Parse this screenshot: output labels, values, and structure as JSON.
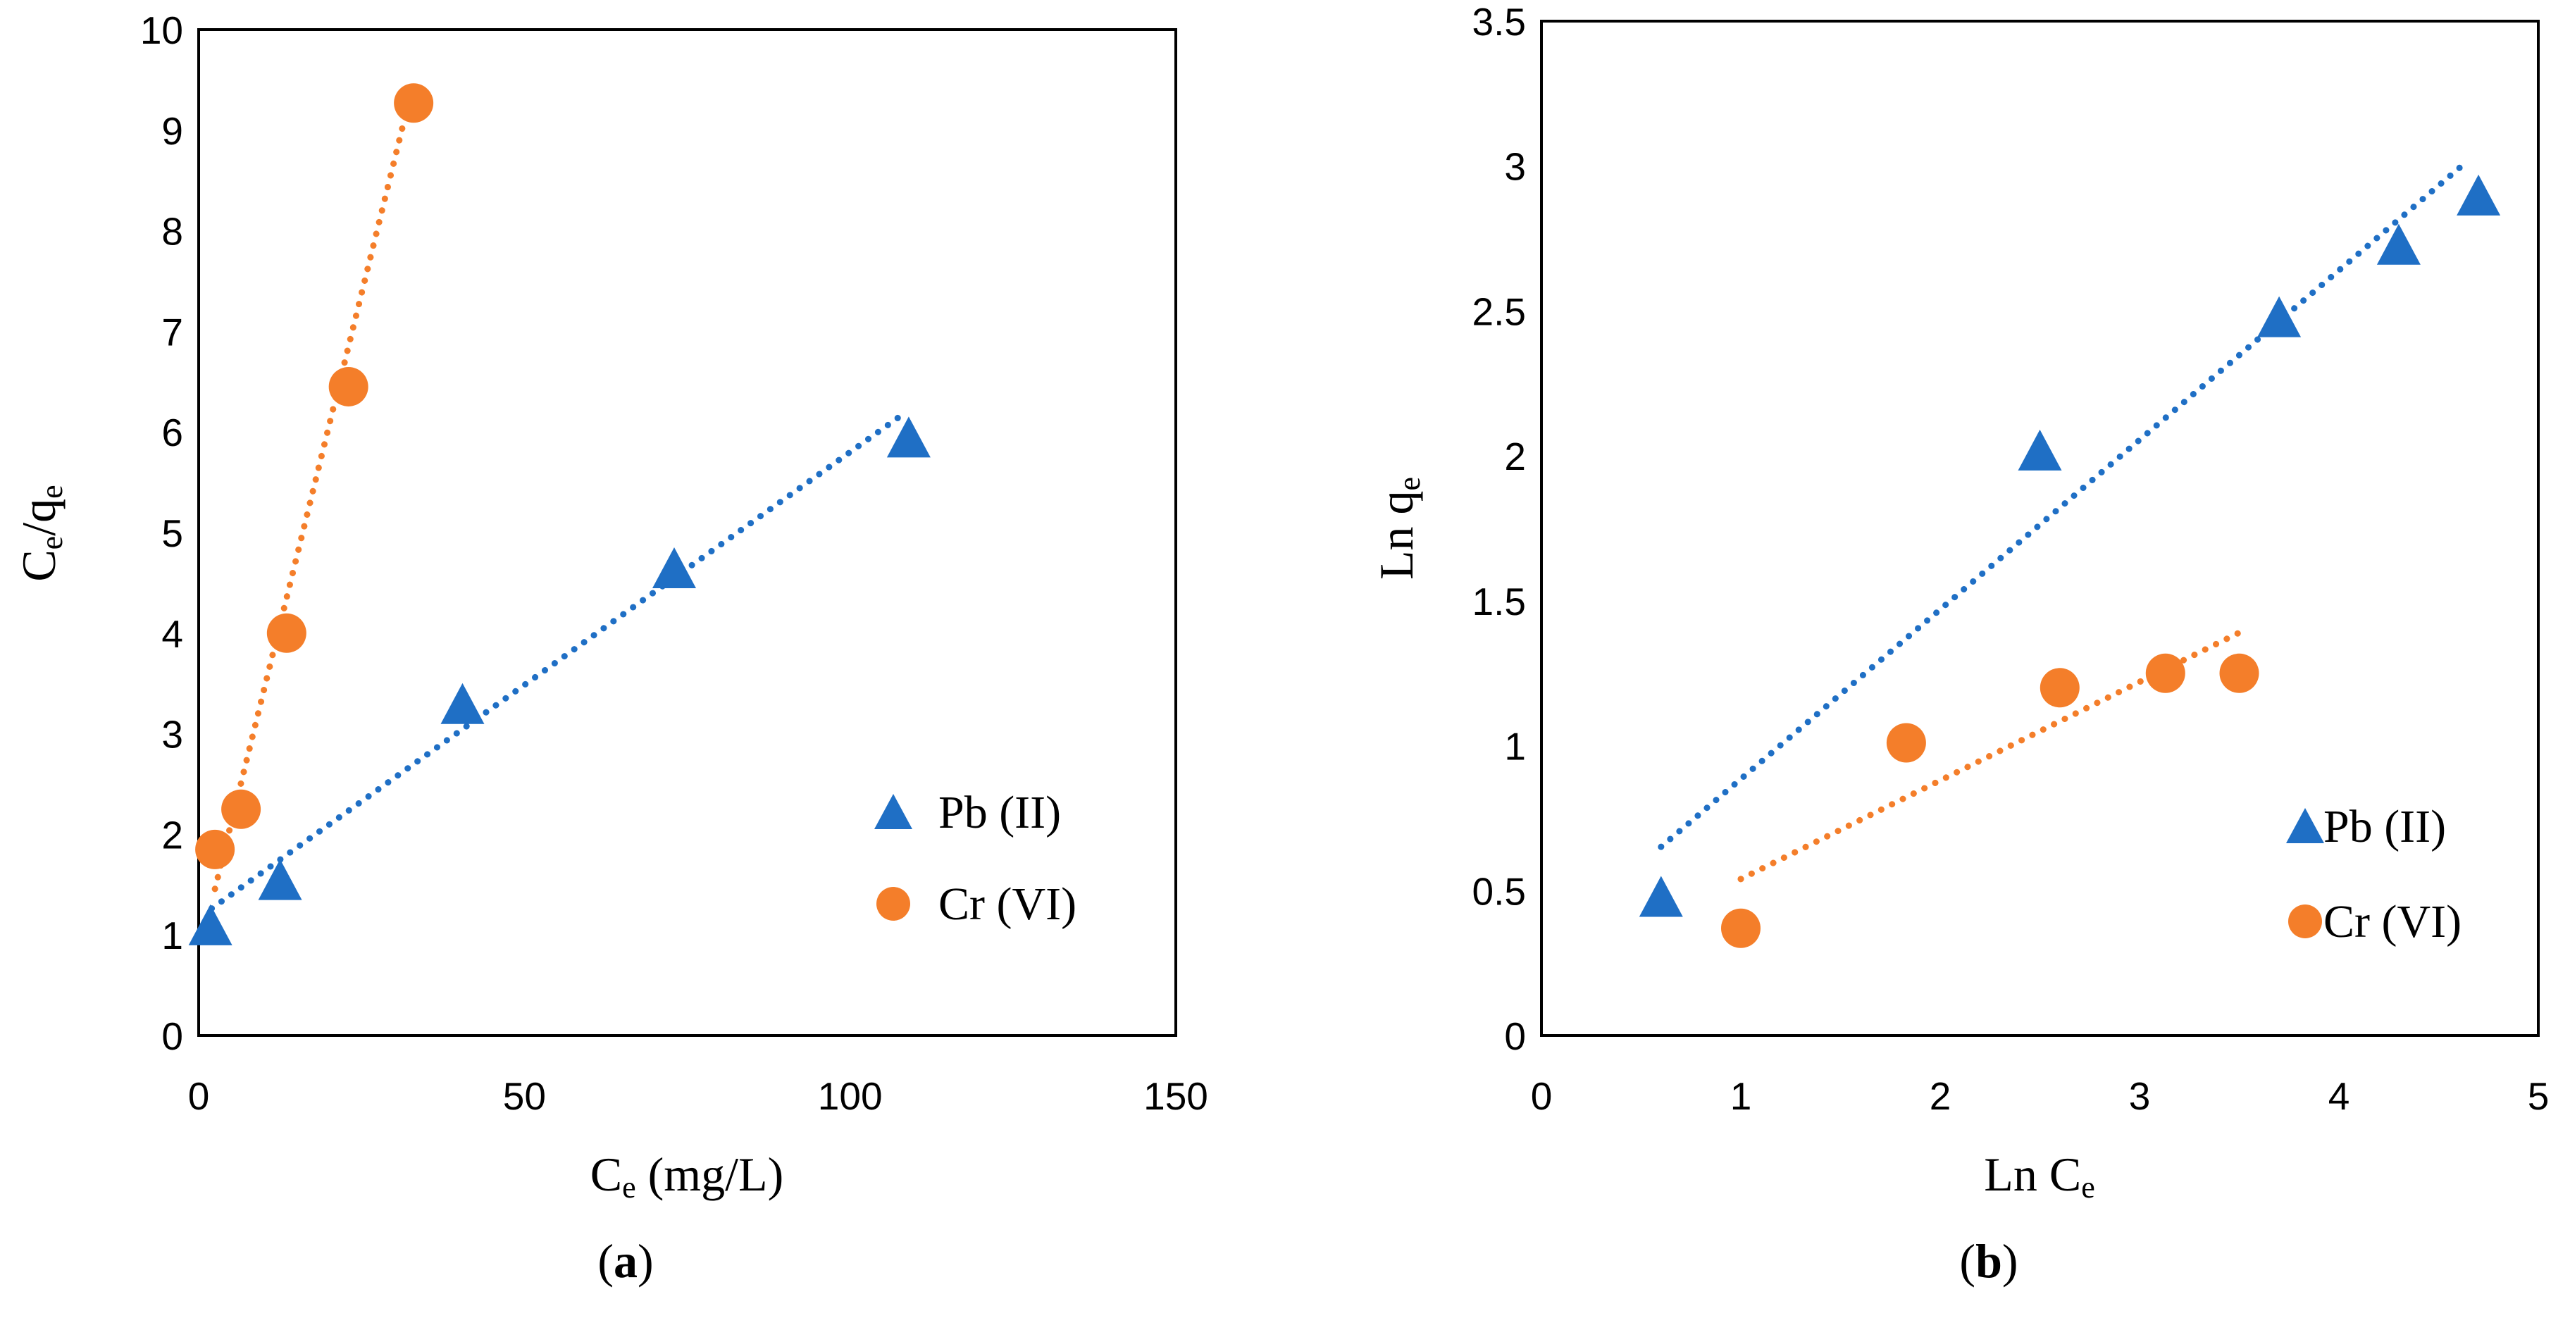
{
  "chart_data": [
    {
      "type": "scatter",
      "panel_label": "a",
      "xlabel": {
        "base": "C",
        "sub": "e",
        "suffix": " (mg/L)"
      },
      "ylabel": {
        "parts": [
          {
            "t": "C",
            "sub": false
          },
          {
            "t": "e",
            "sub": true
          },
          {
            "t": "/q",
            "sub": false
          },
          {
            "t": "e",
            "sub": true
          }
        ]
      },
      "xlim": [
        0,
        150
      ],
      "ylim": [
        0,
        10
      ],
      "xticks": [
        0,
        50,
        100,
        150
      ],
      "yticks": [
        0,
        1,
        2,
        3,
        4,
        5,
        6,
        7,
        8,
        9,
        10
      ],
      "legend_position": "lower-right",
      "series": [
        {
          "name": "Pb (II)",
          "marker": "triangle",
          "color": "#1F6FC5",
          "x": [
            1.8,
            12.5,
            40.5,
            73,
            109
          ],
          "y": [
            1.1,
            1.55,
            3.3,
            4.65,
            5.95
          ],
          "trendline": {
            "x0": 2,
            "x1": 108,
            "slope": 0.0463,
            "intercept": 1.17
          }
        },
        {
          "name": "Cr (VI)",
          "marker": "circle",
          "color": "#F47E2A",
          "x": [
            2.5,
            6.5,
            13.5,
            23,
            33
          ],
          "y": [
            1.85,
            2.25,
            4.0,
            6.45,
            9.27
          ],
          "trendline": {
            "x0": 2.5,
            "x1": 32.5,
            "slope": 0.263,
            "intercept": 0.8
          }
        }
      ]
    },
    {
      "type": "scatter",
      "panel_label": "b",
      "xlabel": {
        "base": "Ln C",
        "sub": "e",
        "suffix": ""
      },
      "ylabel": {
        "parts": [
          {
            "t": "Ln q",
            "sub": false
          },
          {
            "t": "e",
            "sub": true
          }
        ]
      },
      "xlim": [
        0,
        5
      ],
      "ylim": [
        0,
        3.5
      ],
      "xticks": [
        0,
        1,
        2,
        3,
        4,
        5
      ],
      "yticks": [
        0,
        0.5,
        1,
        1.5,
        2,
        2.5,
        3,
        3.5
      ],
      "legend_position": "lower-right",
      "series": [
        {
          "name": "Pb (II)",
          "marker": "triangle",
          "color": "#1F6FC5",
          "x": [
            0.6,
            2.5,
            3.7,
            4.3,
            4.7
          ],
          "y": [
            0.48,
            2.02,
            2.48,
            2.73,
            2.9
          ],
          "trendline": {
            "x0": 0.6,
            "x1": 4.65,
            "slope": 0.585,
            "intercept": 0.3
          }
        },
        {
          "name": "Cr (VI)",
          "marker": "circle",
          "color": "#F47E2A",
          "x": [
            1.0,
            1.83,
            2.6,
            3.13,
            3.5
          ],
          "y": [
            0.37,
            1.01,
            1.2,
            1.25,
            1.25
          ],
          "trendline": {
            "x0": 1.0,
            "x1": 3.5,
            "slope": 0.34,
            "intercept": 0.2
          }
        }
      ]
    }
  ]
}
